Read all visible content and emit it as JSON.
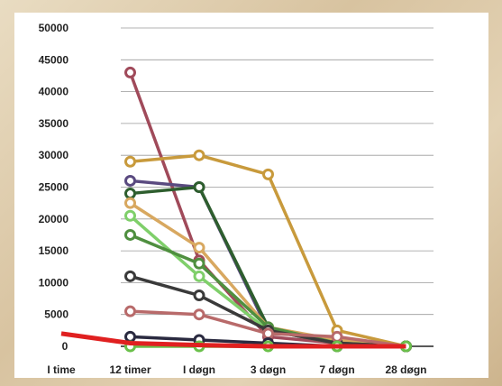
{
  "chart_data": {
    "type": "line",
    "categories": [
      "1time",
      "12 timer",
      "1 døgn",
      "3 døgn",
      "7 døgn",
      "28 døgn"
    ],
    "x_tick_labels": [
      "I time",
      "12 timer",
      "I døgn",
      "3 døgn",
      "7 døgn",
      "28 døgn"
    ],
    "y_tick_labels": [
      "0",
      "5000",
      "10000",
      "15000",
      "20000",
      "25000",
      "30000",
      "35000",
      "40000",
      "45000",
      "50000"
    ],
    "ylim": [
      0,
      50000
    ],
    "grid": true,
    "series": [
      {
        "color": "#a04a5a",
        "values": [
          null,
          43000,
          13500,
          1500,
          500,
          0
        ]
      },
      {
        "color": "#c89a3c",
        "values": [
          null,
          29000,
          30000,
          27000,
          2500,
          0
        ]
      },
      {
        "color": "#5a4a80",
        "values": [
          null,
          26000,
          25000,
          2500,
          500,
          0
        ]
      },
      {
        "color": "#2e5e2e",
        "values": [
          null,
          24000,
          25000,
          3000,
          500,
          0
        ]
      },
      {
        "color": "#d8a860",
        "values": [
          null,
          22500,
          15500,
          3000,
          1000,
          0
        ]
      },
      {
        "color": "#7fcf6a",
        "values": [
          null,
          20500,
          11000,
          2500,
          500,
          0
        ]
      },
      {
        "color": "#4f8f3f",
        "values": [
          null,
          17500,
          13000,
          3000,
          500,
          0
        ]
      },
      {
        "color": "#3a3a3a",
        "values": [
          null,
          11000,
          8000,
          2500,
          500,
          0
        ]
      },
      {
        "color": "#b86a6a",
        "values": [
          null,
          5500,
          5000,
          2000,
          1500,
          0
        ]
      },
      {
        "color": "#2a2a40",
        "values": [
          null,
          1500,
          1000,
          500,
          0,
          0
        ]
      },
      {
        "color": "#6ac04a",
        "values": [
          null,
          0,
          0,
          0,
          0,
          0
        ]
      },
      {
        "color": "#e02020",
        "values": [
          2000,
          500,
          200,
          0,
          0,
          0
        ]
      }
    ]
  }
}
